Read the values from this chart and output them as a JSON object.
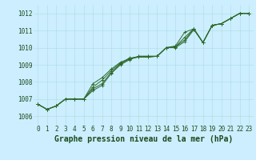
{
  "xlabel": "Graphe pression niveau de la mer (hPa)",
  "x": [
    0,
    1,
    2,
    3,
    4,
    5,
    6,
    7,
    8,
    9,
    10,
    11,
    12,
    13,
    14,
    15,
    16,
    17,
    18,
    19,
    20,
    21,
    22,
    23
  ],
  "lines": [
    [
      1006.7,
      1006.4,
      1006.6,
      1007.0,
      1007.0,
      1007.0,
      1007.5,
      1007.8,
      1008.5,
      1009.0,
      1009.3,
      1009.5,
      1009.5,
      1009.5,
      1010.0,
      1010.1,
      1010.9,
      1011.1,
      1010.3,
      1011.3,
      1011.4,
      1011.7,
      1012.0,
      1012.0
    ],
    [
      1006.7,
      1006.4,
      1006.6,
      1007.0,
      1007.0,
      1007.0,
      1007.6,
      1007.9,
      1008.55,
      1009.05,
      1009.35,
      1009.5,
      1009.5,
      1009.5,
      1010.0,
      1010.05,
      1010.6,
      1011.1,
      1010.3,
      1011.3,
      1011.4,
      1011.7,
      1012.0,
      1012.0
    ],
    [
      1006.7,
      1006.4,
      1006.6,
      1007.0,
      1007.0,
      1007.0,
      1007.7,
      1008.1,
      1008.65,
      1009.1,
      1009.4,
      1009.45,
      1009.45,
      1009.5,
      1010.0,
      1010.05,
      1010.45,
      1011.1,
      1010.3,
      1011.3,
      1011.4,
      1011.7,
      1012.0,
      1012.0
    ],
    [
      1006.7,
      1006.4,
      1006.6,
      1007.0,
      1007.0,
      1007.0,
      1007.9,
      1008.25,
      1008.75,
      1009.15,
      1009.35,
      1009.45,
      1009.45,
      1009.5,
      1010.0,
      1010.0,
      1010.35,
      1011.05,
      1010.3,
      1011.3,
      1011.4,
      1011.7,
      1012.0,
      1012.0
    ]
  ],
  "line_color": "#2d6a2d",
  "marker": "+",
  "markersize": 3,
  "linewidth": 0.7,
  "ylim": [
    1005.5,
    1012.5
  ],
  "yticks": [
    1006,
    1007,
    1008,
    1009,
    1010,
    1011,
    1012
  ],
  "xlim": [
    -0.5,
    23.5
  ],
  "xticks": [
    0,
    1,
    2,
    3,
    4,
    5,
    6,
    7,
    8,
    9,
    10,
    11,
    12,
    13,
    14,
    15,
    16,
    17,
    18,
    19,
    20,
    21,
    22,
    23
  ],
  "bg_color": "#cceeff",
  "grid_color": "#aadddd",
  "tick_label_fontsize": 5.5,
  "xlabel_fontsize": 7,
  "title_color": "#1a4a1a",
  "tick_color": "#1a4a1a"
}
